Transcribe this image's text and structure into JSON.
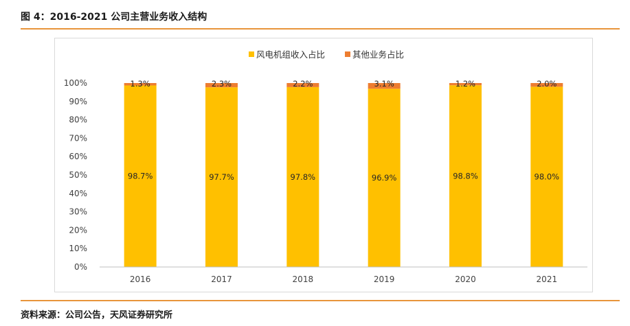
{
  "figure_title": "图 4：2016-2021 公司主营业务收入结构",
  "source": "资料来源：公司公告，天风证券研究所",
  "chart_data": {
    "type": "bar",
    "stacked": true,
    "categories": [
      "2016",
      "2017",
      "2018",
      "2019",
      "2020",
      "2021"
    ],
    "series": [
      {
        "name": "风电机组收入占比",
        "color": "#ffc000",
        "values": [
          98.7,
          97.7,
          97.8,
          96.9,
          98.8,
          98.0
        ],
        "labels": [
          "98.7%",
          "97.7%",
          "97.8%",
          "96.9%",
          "98.8%",
          "98.0%"
        ]
      },
      {
        "name": "其他业务占比",
        "color": "#ed7d31",
        "values": [
          1.3,
          2.3,
          2.2,
          3.1,
          1.2,
          2.0
        ],
        "labels": [
          "1.3%",
          "2.3%",
          "2.2%",
          "3.1%",
          "1.2%",
          "2.0%"
        ]
      }
    ],
    "y_ticks": [
      "0%",
      "10%",
      "20%",
      "30%",
      "40%",
      "50%",
      "60%",
      "70%",
      "80%",
      "90%",
      "100%"
    ],
    "ylim": [
      0,
      100
    ],
    "legend_position": "top",
    "grid": false
  }
}
